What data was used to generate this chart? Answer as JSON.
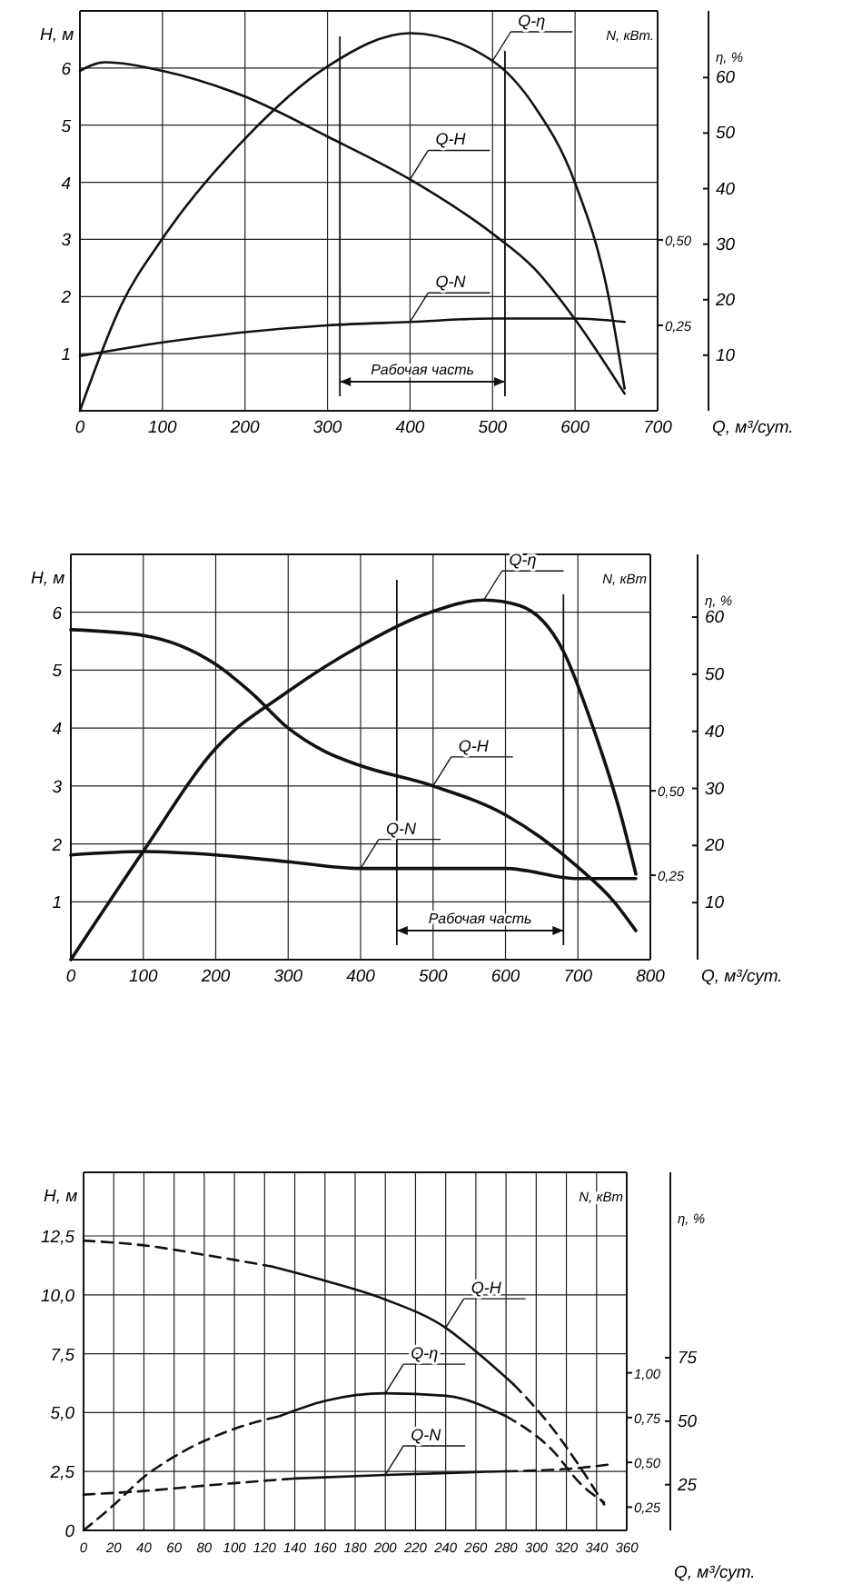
{
  "chart_data": [
    {
      "type": "line",
      "xlabel": "Q, м³/сут.",
      "ylabel": "H, м",
      "y2label": "N, кВт.",
      "y3label": "η, %",
      "grid": true,
      "line_style": "solid",
      "marker": "none",
      "xlim": [
        0,
        700
      ],
      "xticks": [
        0,
        100,
        200,
        300,
        400,
        500,
        600,
        700
      ],
      "ylim": [
        0,
        7
      ],
      "yticks": [
        1,
        2,
        3,
        4,
        5,
        6
      ],
      "y2lim": [
        0,
        1.17
      ],
      "y2ticks": [
        {
          "value": 0.25,
          "label": "0,25"
        },
        {
          "value": 0.5,
          "label": "0,50"
        }
      ],
      "y3lim": [
        0,
        72
      ],
      "y3ticks": [
        10,
        20,
        30,
        40,
        50,
        60
      ],
      "ref_lines": [
        {
          "axis": "x",
          "value": 315
        },
        {
          "axis": "x",
          "value": 515
        }
      ],
      "annotations": [
        "Рабочая часть"
      ],
      "series": [
        {
          "name": "Q-H",
          "axis": "y",
          "x": [
            0,
            30,
            100,
            200,
            300,
            400,
            500,
            550,
            600,
            660
          ],
          "values": [
            5.95,
            6.1,
            5.95,
            5.5,
            4.8,
            4.05,
            3.1,
            2.5,
            1.6,
            0.3
          ]
        },
        {
          "name": "Q-η",
          "axis": "y3",
          "x": [
            0,
            50,
            100,
            200,
            300,
            400,
            500,
            550,
            600,
            640,
            660
          ],
          "values": [
            0,
            19,
            31,
            49,
            62,
            68,
            63,
            55,
            41,
            21,
            4
          ]
        },
        {
          "name": "Q-N",
          "axis": "y2",
          "x": [
            0,
            100,
            200,
            300,
            400,
            500,
            600,
            660
          ],
          "values": [
            0.16,
            0.2,
            0.23,
            0.25,
            0.26,
            0.27,
            0.27,
            0.26
          ]
        }
      ]
    },
    {
      "type": "line",
      "xlabel": "Q, м³/сут.",
      "ylabel": "H, м",
      "y2label": "N, кВт",
      "y3label": "η, %",
      "grid": true,
      "line_style": "solid",
      "marker": "none",
      "xlim": [
        0,
        800
      ],
      "xticks": [
        0,
        100,
        200,
        300,
        400,
        500,
        600,
        700,
        800
      ],
      "ylim": [
        0,
        7
      ],
      "yticks": [
        1,
        2,
        3,
        4,
        5,
        6
      ],
      "y2lim": [
        0,
        1.2
      ],
      "y2ticks": [
        {
          "value": 0.25,
          "label": "0,25"
        },
        {
          "value": 0.5,
          "label": "0,50"
        }
      ],
      "y3lim": [
        0,
        71
      ],
      "y3ticks": [
        10,
        20,
        30,
        40,
        50,
        60
      ],
      "ref_lines": [
        {
          "axis": "x",
          "value": 450
        },
        {
          "axis": "x",
          "value": 680
        }
      ],
      "annotations": [
        "Рабочая часть"
      ],
      "series": [
        {
          "name": "Q-H",
          "axis": "y",
          "x": [
            0,
            100,
            200,
            250,
            300,
            350,
            400,
            500,
            600,
            650,
            700,
            750,
            780
          ],
          "values": [
            5.7,
            5.6,
            5.1,
            4.6,
            4.0,
            3.6,
            3.35,
            3.0,
            2.5,
            2.1,
            1.6,
            1.0,
            0.5
          ]
        },
        {
          "name": "Q-η",
          "axis": "y3",
          "x": [
            0,
            100,
            200,
            300,
            400,
            500,
            570,
            620,
            680,
            720,
            760,
            780
          ],
          "values": [
            0,
            19,
            37,
            47,
            55,
            61,
            63,
            62,
            54,
            41,
            25,
            15
          ]
        },
        {
          "name": "Q-N",
          "axis": "y2",
          "x": [
            0,
            100,
            200,
            300,
            400,
            500,
            600,
            700,
            780
          ],
          "values": [
            0.31,
            0.32,
            0.31,
            0.29,
            0.27,
            0.27,
            0.27,
            0.24,
            0.24
          ]
        }
      ]
    },
    {
      "type": "line",
      "xlabel": "Q, м³/сут.",
      "ylabel": "H, м",
      "y2label": "N, кВт",
      "y3label": "η, %",
      "grid": true,
      "marker": "none",
      "xlim": [
        0,
        360
      ],
      "xticks": [
        0,
        20,
        40,
        60,
        80,
        100,
        120,
        140,
        160,
        180,
        200,
        220,
        240,
        260,
        280,
        300,
        320,
        340,
        360
      ],
      "ylim": [
        0,
        15.2
      ],
      "yticks": [
        0,
        {
          "value": 2.5,
          "label": "2,5"
        },
        {
          "value": 5,
          "label": "5,0"
        },
        {
          "value": 7.5,
          "label": "7,5"
        },
        {
          "value": 10,
          "label": "10,0"
        },
        {
          "value": 12.5,
          "label": "12,5"
        }
      ],
      "y2lim": [
        0.12,
        2.12
      ],
      "y2ticks": [
        {
          "value": 0.25,
          "label": "0,25"
        },
        {
          "value": 0.5,
          "label": "0,50"
        },
        {
          "value": 0.75,
          "label": "0,75"
        },
        {
          "value": 1,
          "label": "1,00"
        }
      ],
      "y3lim": [
        7,
        148
      ],
      "y3ticks": [
        25,
        50,
        75
      ],
      "series": [
        {
          "axis": "y",
          "line_style": "dashed",
          "x": [
            0,
            40,
            80,
            125
          ],
          "values": [
            12.3,
            12.1,
            11.7,
            11.2
          ]
        },
        {
          "name": "Q-H",
          "axis": "y",
          "line_style": "solid",
          "x": [
            125,
            160,
            200,
            240,
            260,
            285
          ],
          "values": [
            11.2,
            10.6,
            9.8,
            8.6,
            7.6,
            6.2
          ]
        },
        {
          "axis": "y",
          "line_style": "dashed",
          "x": [
            285,
            310,
            330,
            345
          ],
          "values": [
            6.2,
            4.4,
            2.6,
            1.1
          ]
        },
        {
          "axis": "y3",
          "line_style": "dashed",
          "x": [
            0,
            20,
            40,
            60,
            100,
            130
          ],
          "values": [
            7,
            17,
            28,
            36,
            47,
            52
          ]
        },
        {
          "name": "Q-η",
          "axis": "y3",
          "line_style": "solid",
          "x": [
            130,
            160,
            200,
            240,
            280
          ],
          "values": [
            52,
            58,
            61,
            60,
            52
          ]
        },
        {
          "axis": "y3",
          "line_style": "dashed",
          "x": [
            280,
            310,
            330,
            345
          ],
          "values": [
            52,
            39,
            25,
            18
          ]
        },
        {
          "axis": "y2",
          "line_style": "dashed",
          "x": [
            0,
            40,
            80,
            140
          ],
          "values": [
            0.32,
            0.34,
            0.37,
            0.41
          ]
        },
        {
          "name": "Q-N",
          "axis": "y2",
          "line_style": "solid",
          "x": [
            140,
            200,
            280
          ],
          "values": [
            0.41,
            0.43,
            0.45
          ]
        },
        {
          "axis": "y2",
          "line_style": "dashed",
          "x": [
            280,
            330,
            350
          ],
          "values": [
            0.45,
            0.47,
            0.49
          ]
        }
      ]
    }
  ]
}
